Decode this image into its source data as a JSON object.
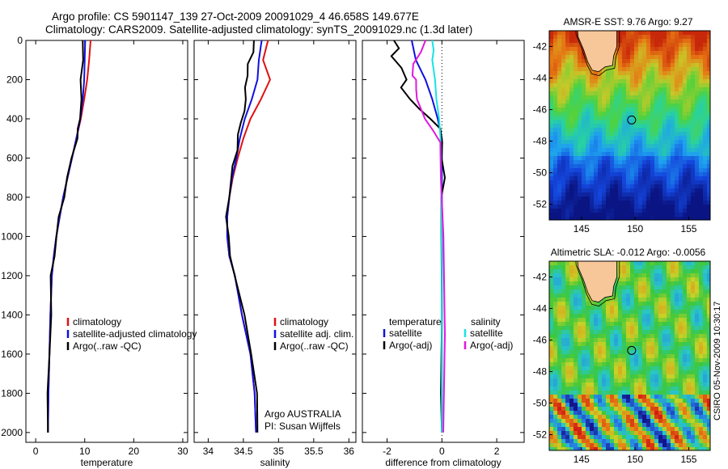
{
  "header": {
    "line1": "Argo profile: CS 5901147_139 27-Oct-2009 20091029_4 46.658S 149.677E",
    "line2": "Climatology: CARS2009. Satellite-adjusted climatology: synTS_20091029.nc (1.3d later)"
  },
  "side_label": "CSIRO 05-Nov-2009 10:30:17",
  "colors": {
    "clim": "#e01010",
    "sat": "#1010e0",
    "argo": "#000000",
    "sat_sal": "#19e3e3",
    "argo_sal": "#e019e0",
    "land": "#f7c79a"
  },
  "chart_data": [
    {
      "type": "line",
      "xlabel": "temperature",
      "xlim": [
        -2,
        31
      ],
      "ylim": [
        2050,
        0
      ],
      "xticks": [
        "0",
        "10",
        "20",
        "30"
      ],
      "xtick_values": [
        0,
        10,
        20,
        30
      ],
      "yticks": [
        "0",
        "200",
        "400",
        "600",
        "800",
        "1000",
        "1200",
        "1400",
        "1600",
        "1800",
        "2000"
      ],
      "ytick_values": [
        0,
        200,
        400,
        600,
        800,
        1000,
        1200,
        1400,
        1600,
        1800,
        2000
      ],
      "legend": {
        "placement": "lower-right",
        "entries": [
          "climatology",
          "satellite-adjusted climatology",
          "Argo(..raw -QC)"
        ]
      },
      "series": [
        {
          "name": "climatology",
          "color": "#e01010",
          "x": [
            11.2,
            10.9,
            10.5,
            9.9,
            9.2,
            8.3,
            7.4,
            6.5,
            5.6,
            4.9,
            4.2,
            3.7,
            3.3,
            3.0,
            2.8,
            2.6,
            2.5
          ],
          "y": [
            0,
            100,
            200,
            300,
            400,
            500,
            600,
            700,
            800,
            900,
            1000,
            1100,
            1200,
            1400,
            1600,
            1800,
            2000
          ]
        },
        {
          "name": "satellite-adjusted climatology",
          "color": "#1010e0",
          "x": [
            10.1,
            10.0,
            9.9,
            9.6,
            9.1,
            8.3,
            7.4,
            6.5,
            5.6,
            4.9,
            4.2,
            3.7,
            3.3,
            3.0,
            2.8,
            2.6,
            2.5
          ],
          "y": [
            0,
            100,
            200,
            300,
            400,
            500,
            600,
            700,
            800,
            900,
            1000,
            1100,
            1200,
            1400,
            1600,
            1800,
            2000
          ]
        },
        {
          "name": "Argo(..raw -QC)",
          "color": "#000000",
          "x": [
            9.6,
            9.5,
            9.4,
            9.2,
            9.0,
            8.8,
            8.3,
            7.4,
            6.5,
            5.6,
            4.9,
            4.2,
            3.7,
            3.3,
            3.0,
            2.8,
            2.6,
            2.5
          ],
          "y": [
            0,
            100,
            200,
            300,
            400,
            450,
            500,
            600,
            700,
            800,
            900,
            1000,
            1100,
            1200,
            1400,
            1600,
            1800,
            2000
          ]
        }
      ]
    },
    {
      "type": "line",
      "xlabel": "salinity",
      "xlim": [
        33.8,
        36.1
      ],
      "ylim": [
        2050,
        0
      ],
      "xticks": [
        "34",
        "34.5",
        "35",
        "35.5",
        "36"
      ],
      "xtick_values": [
        34,
        34.5,
        35,
        35.5,
        36
      ],
      "legend": {
        "placement": "lower-right",
        "entries": [
          "climatology",
          "satellite adj. clim.",
          "Argo(..raw -QC)"
        ]
      },
      "annotation": [
        "Argo AUSTRALIA",
        "PI: Susan Wijffels"
      ],
      "series": [
        {
          "name": "climatology",
          "color": "#e01010",
          "x": [
            34.85,
            34.78,
            34.88,
            34.75,
            34.6,
            34.5,
            34.42,
            34.35,
            34.3,
            34.27,
            34.27,
            34.3,
            34.38,
            34.48,
            34.6,
            34.66,
            34.68
          ],
          "y": [
            0,
            100,
            200,
            300,
            400,
            500,
            600,
            700,
            800,
            900,
            1000,
            1100,
            1200,
            1400,
            1600,
            1800,
            2000
          ]
        },
        {
          "name": "satellite adj. clim.",
          "color": "#1010e0",
          "x": [
            34.76,
            34.72,
            34.7,
            34.62,
            34.52,
            34.45,
            34.4,
            34.34,
            34.3,
            34.27,
            34.27,
            34.3,
            34.38,
            34.48,
            34.6,
            34.66,
            34.68
          ],
          "y": [
            0,
            100,
            200,
            300,
            400,
            500,
            600,
            700,
            800,
            900,
            1000,
            1100,
            1200,
            1400,
            1600,
            1800,
            2000
          ]
        },
        {
          "name": "Argo(..raw -QC)",
          "color": "#000000",
          "x": [
            34.65,
            34.63,
            34.58,
            34.55,
            34.52,
            34.55,
            34.5,
            34.47,
            34.43,
            34.4,
            34.36,
            34.32,
            34.29,
            34.27,
            34.28,
            34.31,
            34.39,
            34.5,
            34.62,
            34.7,
            34.7
          ],
          "y": [
            0,
            60,
            120,
            180,
            240,
            300,
            360,
            420,
            480,
            560,
            640,
            720,
            800,
            900,
            1000,
            1100,
            1200,
            1400,
            1600,
            1800,
            2000
          ]
        }
      ]
    },
    {
      "type": "line",
      "xlabel": "difference from climatology",
      "xlim": [
        -2.9,
        3
      ],
      "ylim": [
        2050,
        0
      ],
      "xticks": [
        "-2",
        "0",
        "2"
      ],
      "xtick_values": [
        -2,
        0,
        2
      ],
      "legend": {
        "placement": "lower-center",
        "left_title": "temperature",
        "right_title": "salinity",
        "entries": [
          "satellite",
          "Argo(-adj)",
          "satellite",
          "Argo(-adj)"
        ]
      },
      "series": [
        {
          "name": "satellite",
          "color": "#1010e0",
          "x": [
            -1.1,
            -0.95,
            -0.6,
            -0.35,
            -0.15,
            0.0,
            0.0,
            0.0,
            0.0,
            0.0
          ],
          "y": [
            0,
            100,
            200,
            300,
            400,
            500,
            800,
            1200,
            1600,
            2000
          ]
        },
        {
          "name": "Argo(-adj)",
          "color": "#000000",
          "x": [
            -1.75,
            -1.6,
            -1.8,
            -1.5,
            -1.3,
            -1.45,
            -1.2,
            -0.8,
            -0.4,
            -0.1,
            0.05,
            -0.02,
            0.08,
            0.02,
            -0.05,
            0.0,
            0.0,
            0.0
          ],
          "y": [
            0,
            40,
            80,
            140,
            200,
            240,
            300,
            350,
            400,
            450,
            520,
            600,
            700,
            800,
            1000,
            1400,
            1800,
            2000
          ]
        },
        {
          "name": "satellite",
          "color": "#19e3e3",
          "x": [
            -0.35,
            -0.3,
            -0.35,
            -0.3,
            -0.25,
            -0.2,
            -0.1,
            -0.05,
            -0.02,
            0.0,
            0.0
          ],
          "y": [
            0,
            50,
            100,
            150,
            200,
            300,
            400,
            500,
            800,
            1200,
            2000
          ]
        },
        {
          "name": "Argo(-adj)",
          "color": "#e019e0",
          "x": [
            -0.6,
            -0.8,
            -1.0,
            -1.1,
            -0.95,
            -0.9,
            -0.95,
            -0.6,
            -0.3,
            -0.1,
            0.0,
            0.05,
            0.08,
            0.05
          ],
          "y": [
            0,
            60,
            120,
            180,
            200,
            250,
            300,
            400,
            460,
            520,
            700,
            1000,
            1500,
            2000
          ]
        }
      ]
    },
    {
      "type": "heatmap",
      "title": "AMSR-E SST: 9.76 Argo: 9.27",
      "xlim": [
        142,
        157
      ],
      "ylim": [
        -53,
        -41
      ],
      "xticks": [
        "145",
        "150",
        "155"
      ],
      "xtick_values": [
        145,
        150,
        155
      ],
      "yticks": [
        "-42",
        "-44",
        "-46",
        "-48",
        "-50",
        "-52"
      ],
      "ytick_values": [
        -42,
        -44,
        -46,
        -48,
        -50,
        -52
      ],
      "marker": {
        "lon": 149.677,
        "lat": -46.658
      }
    },
    {
      "type": "heatmap",
      "title": "Altimetric SLA: -0.012 Argo: -0.0056",
      "xlim": [
        142,
        157
      ],
      "ylim": [
        -53,
        -41
      ],
      "xticks": [
        "145",
        "150",
        "155"
      ],
      "xtick_values": [
        145,
        150,
        155
      ],
      "yticks": [
        "-42",
        "-44",
        "-46",
        "-48",
        "-50",
        "-52"
      ],
      "ytick_values": [
        -42,
        -44,
        -46,
        -48,
        -50,
        -52
      ],
      "marker": {
        "lon": 149.677,
        "lat": -46.658
      }
    }
  ]
}
